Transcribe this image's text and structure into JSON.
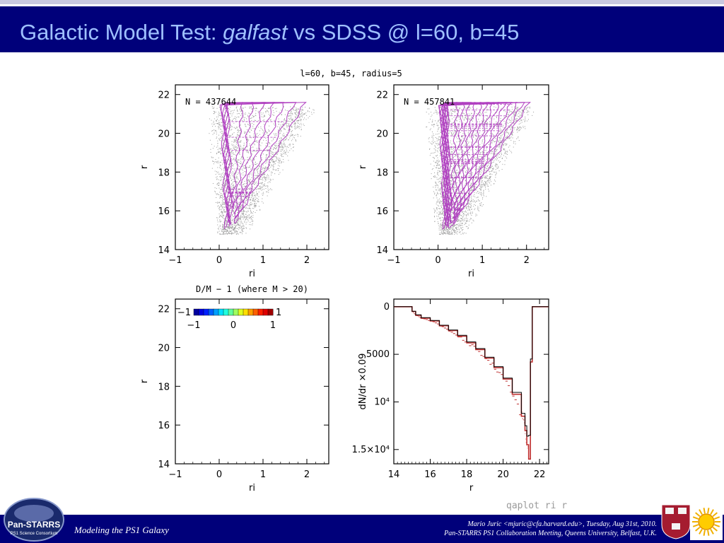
{
  "slide": {
    "title_prefix": "Galactic Model Test: ",
    "title_italic": "galfast",
    "title_suffix": " vs SDSS @ l=60, b=45",
    "footer_left": "Modeling the PS1 Galaxy",
    "credit_line1": "Mario Juric <mjuric@cfa.harvard.edu>, Tuesday, Aug 31st, 2010.",
    "credit_line2": "Pan-STARRS PS1 Collaboration Meeting, Queens University, Belfast, U.K.",
    "logo_text_main": "Pan-STARRS",
    "logo_text_sub": "PS1 Science Consortium",
    "qaplot_label": "qaplot  ri  r",
    "colors": {
      "title_bar": "#00007a",
      "title_text": "#9fc0ff",
      "contour": "#b040c0",
      "hist_model": "#c03030",
      "hist_data": "#000000"
    }
  },
  "chart_data": [
    {
      "type": "scatter",
      "panel": "top-left",
      "top_title": "l=60, b=45, radius=5",
      "annotation": "N = 437644",
      "xlabel": "ri",
      "ylabel": "r",
      "xlim": [
        -1,
        2.5
      ],
      "ylim": [
        22.5,
        14
      ],
      "xticks": [
        -1,
        0,
        1,
        2
      ],
      "yticks": [
        14,
        16,
        18,
        20,
        22
      ],
      "contour_color": "#b040c0"
    },
    {
      "type": "scatter",
      "panel": "top-right",
      "annotation": "N = 457841",
      "xlabel": "ri",
      "ylabel": "r",
      "xlim": [
        -1,
        2.5
      ],
      "ylim": [
        22.5,
        14
      ],
      "xticks": [
        -1,
        0,
        1,
        2
      ],
      "yticks": [
        14,
        16,
        18,
        20,
        22
      ],
      "contour_color": "#b040c0"
    },
    {
      "type": "heatmap",
      "panel": "bottom-left",
      "title": "D/M − 1 (where M > 20)",
      "xlabel": "ri",
      "ylabel": "r",
      "xlim": [
        -1,
        2.5
      ],
      "ylim": [
        22.5,
        14
      ],
      "xticks": [
        -1,
        0,
        1,
        2
      ],
      "yticks": [
        14,
        16,
        18,
        20,
        22
      ],
      "colorbar": {
        "min": -1,
        "max": 1,
        "ticks": [
          -1,
          0,
          1
        ],
        "end_labels": [
          "−1",
          "1"
        ]
      }
    },
    {
      "type": "line",
      "panel": "bottom-right",
      "xlabel": "r",
      "ylabel": "dN/dr ×0.09",
      "xlim": [
        14,
        22.5
      ],
      "ylim": [
        -800,
        16500
      ],
      "xticks": [
        14,
        16,
        18,
        20,
        22
      ],
      "yticks": [
        0,
        5000,
        10000,
        15000
      ],
      "ytick_labels": [
        "0",
        "5000",
        "10⁴",
        "1.5×10⁴"
      ],
      "series": [
        {
          "color": "#c03030",
          "x": [
            14.0,
            14.5,
            15.0,
            15.2,
            15.5,
            16.0,
            16.5,
            17.0,
            17.5,
            18.0,
            18.5,
            19.0,
            19.5,
            20.0,
            20.5,
            21.0,
            21.2,
            21.3,
            21.4,
            21.5,
            21.6,
            21.7,
            22.5
          ],
          "y": [
            0,
            0,
            500,
            900,
            1200,
            1500,
            2000,
            2500,
            3100,
            3800,
            4500,
            5400,
            6400,
            7600,
            9200,
            11500,
            13000,
            14500,
            16000,
            5800,
            0,
            0,
            0
          ]
        },
        {
          "color": "#000000",
          "x": [
            14.0,
            14.5,
            15.0,
            15.2,
            15.5,
            16.0,
            16.5,
            17.0,
            17.5,
            18.0,
            18.5,
            19.0,
            19.5,
            20.0,
            20.5,
            21.0,
            21.2,
            21.3,
            21.4,
            21.5,
            21.6,
            21.7,
            22.5
          ],
          "y": [
            0,
            0,
            480,
            850,
            1150,
            1450,
            1950,
            2450,
            3000,
            3700,
            4400,
            5300,
            6300,
            7500,
            9000,
            11200,
            12500,
            13600,
            13500,
            5500,
            0,
            0,
            0
          ]
        }
      ]
    }
  ]
}
